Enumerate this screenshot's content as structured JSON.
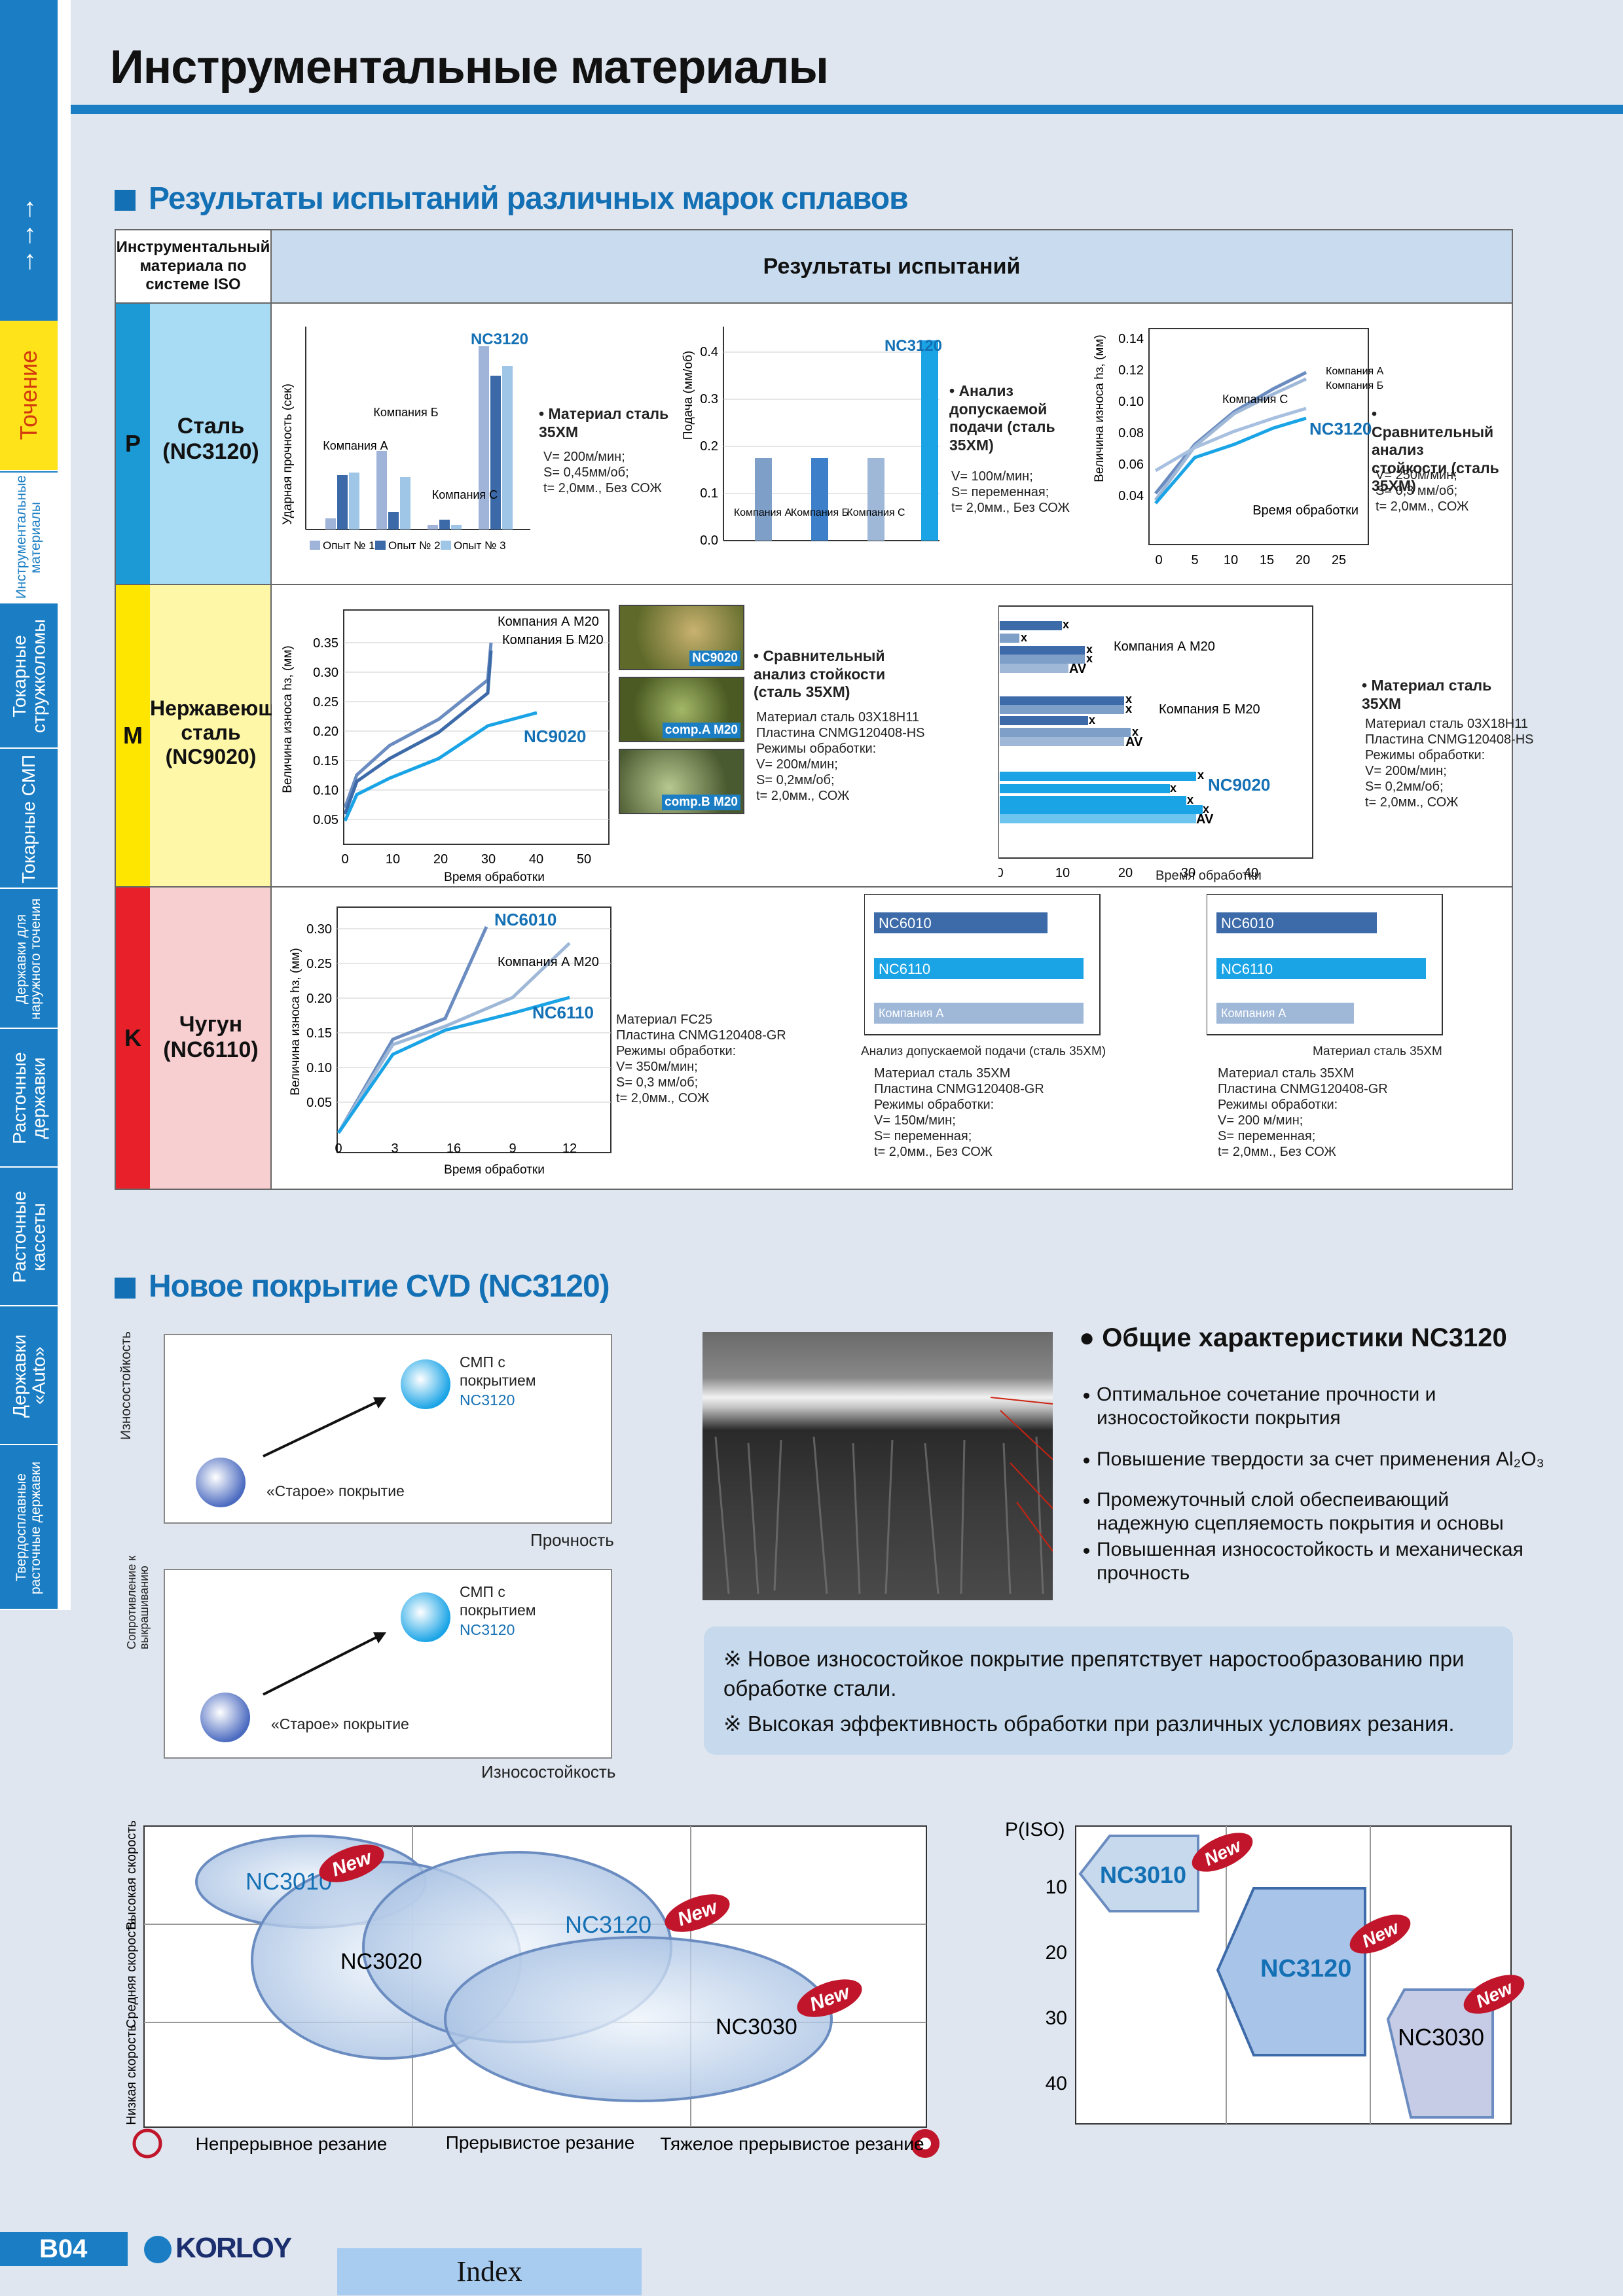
{
  "page": {
    "title": "Инструментальные материалы",
    "code": "B04",
    "logo": "KORLOY",
    "index": "Index"
  },
  "sidebar": {
    "arrows": "←←←",
    "tabs": [
      "Точение",
      "Инструментальные материалы",
      "Токарные стружколомы",
      "Токарные СМП",
      "Державки для наружного точения",
      "Расточные державки",
      "Расточные кассеты",
      "Державки «Auto»",
      "Твердосплавные расточные державки"
    ]
  },
  "section1": {
    "title": "Результаты испытаний различных марок сплавов",
    "col1": "Инструментальный материала по системе ISO",
    "col2": "Результаты испытаний",
    "rows": [
      {
        "iso": "P",
        "name": "Сталь (NC3120)"
      },
      {
        "iso": "M",
        "name": "Нержавеющая сталь (NC9020)"
      },
      {
        "iso": "K",
        "name": "Чугун (NC6110)"
      }
    ]
  },
  "p_row": {
    "c1": {
      "ylabel": "Ударная прочность (сек)",
      "legend": [
        "Опыт № 1",
        "Опыт № 2",
        "Опыт № 3"
      ],
      "labels": [
        "Компания А",
        "Компания Б",
        "Компания С",
        "NC3120"
      ],
      "note_title": "• Материал сталь 35ХМ",
      "note": "V= 200м/мин;\nS= 0,45мм/об;\nt= 2,0мм., Без СОЖ"
    },
    "c2": {
      "ylabel": "Подача (мм/об)",
      "yticks": [
        "0.4",
        "0.3",
        "0.2",
        "0.1",
        "0.0"
      ],
      "labels": [
        "Компания А",
        "Компания Б",
        "Компания С",
        "NC3120"
      ],
      "note_title": "• Анализ допускаемой подачи (сталь 35ХМ)",
      "note": "V= 100м/мин;\nS= переменная;\nt= 2,0мм., Без СОЖ"
    },
    "c3": {
      "ylabel": "Величина износа hз, (мм)",
      "yticks": [
        "0.14",
        "0.12",
        "0.10",
        "0.08",
        "0.06",
        "0.04"
      ],
      "xticks": [
        "0",
        "5",
        "10",
        "15",
        "20",
        "25"
      ],
      "xlabel": "Время обработки",
      "labels": [
        "Компания А",
        "Компания Б",
        "Компания С",
        "NC3120"
      ],
      "note_title": "• Сравнительный анализ стойкости (сталь 35ХМ)",
      "note": "V= 250м/мин;\nS= 0,3 мм/об;\nt= 2,0мм., СОЖ"
    }
  },
  "m_row": {
    "c1": {
      "ylabel": "Величина износа hз, (мм)",
      "yticks": [
        "0.35",
        "0.30",
        "0.25",
        "0.20",
        "0.15",
        "0.10",
        "0.05"
      ],
      "xticks": [
        "0",
        "10",
        "20",
        "30",
        "40",
        "50"
      ],
      "xlabel": "Время обработки",
      "labels": [
        "Компания А  M20",
        "Компания Б  M20",
        "NC9020"
      ]
    },
    "photos": [
      "NC9020",
      "comp.A M20",
      "comp.B M20"
    ],
    "note1_title": "• Сравнительный анализ стойкости (сталь 35ХМ)",
    "note1": "Материал сталь 03Х18Н11\nПластина CNMG120408-HS\nРежимы обработки:\nV= 200м/мин;\nS= 0,2мм/об;\nt= 2,0мм., СОЖ",
    "c3": {
      "xticks": [
        "0",
        "10",
        "20",
        "30",
        "40"
      ],
      "xlabel": "Время обработки",
      "labels": [
        "Компания А  M20",
        "Компания Б  M20",
        "NC9020"
      ],
      "av": "AV",
      "x": "x"
    },
    "note2_title": "• Материал сталь 35ХМ",
    "note2": "Материал сталь 03Х18Н11\nПластина CNMG120408-HS\nРежимы обработки:\nV= 200м/мин;\nS= 0,2мм/об;\nt= 2,0мм., СОЖ"
  },
  "k_row": {
    "c1": {
      "ylabel": "Величина износа hз, (мм)",
      "yticks": [
        "0.30",
        "0.25",
        "0.20",
        "0.15",
        "0.10",
        "0.05"
      ],
      "xticks": [
        "0",
        "3",
        "16",
        "9",
        "12"
      ],
      "xlabel": "Время обработки",
      "labels": [
        "NC6010",
        "Компания А  M20",
        "NC6110"
      ]
    },
    "note1": "Материал FC25\nПластина CNMG120408-GR\nРежимы обработки:\nV= 350м/мин;\nS= 0,3 мм/об;\nt= 2,0мм., СОЖ",
    "c2": {
      "bars": [
        "NC6010",
        "NC6110",
        "Компания А"
      ],
      "caption": "Анализ допускаемой подачи (сталь 35ХМ)",
      "note": "Материал сталь 35ХМ\nПластина CNMG120408-GR\nРежимы обработки:\nV= 150м/мин;\nS= переменная;\nt= 2,0мм., Без СОЖ"
    },
    "c3": {
      "bars": [
        "NC6010",
        "NC6110",
        "Компания А"
      ],
      "caption": "Материал сталь 35ХМ",
      "note": "Материал сталь 35ХМ\nПластина CNMG120408-GR\nРежимы обработки:\nV= 200 м/мин;\nS= переменная;\nt= 2,0мм., Без СОЖ"
    }
  },
  "section2": {
    "title": "Новое покрытие CVD (NC3120)",
    "d1": {
      "ylabel": "Износостойкость",
      "xlabel": "Прочность",
      "new_label": "СМП с покрытием",
      "new_grade": "NC3120",
      "old_label": "«Старое» покрытие"
    },
    "d2": {
      "ylabel": "Сопротивление к выкрашиванию",
      "xlabel": "Износостойкость",
      "new_label": "СМП с покрытием",
      "new_grade": "NC3120",
      "old_label": "«Старое» покрытие"
    },
    "features_title": "● Общие характеристики NC3120",
    "features": [
      "Оптимальное сочетание прочности и износостойкости покрытия",
      "Повышение твердости за счет применения Al₂O₃",
      "Промежуточный слой обеспеивающий надежную сцепляемость покрытия и основы",
      "Повышенная износостойкость и механическая прочность"
    ],
    "notes": [
      "※ Новое износостойкое покрытие препятствует наростообразованию при обработке стали.",
      "※ Высокая эффективность обработки при различных условиях резания."
    ]
  },
  "application_map": {
    "ylabels": [
      "Высокая скорость",
      "Средняя скорость",
      "Низкая скорость"
    ],
    "xlabels": [
      "Непрерывное резание",
      "Прерывистое резание",
      "Тяжелое прерывистое резание"
    ],
    "grades": [
      "NC3010",
      "NC3020",
      "NC3120",
      "NC3030"
    ],
    "new": "New"
  },
  "iso_map": {
    "title": "P(ISO)",
    "yticks": [
      "10",
      "20",
      "30",
      "40"
    ],
    "grades": [
      "NC3010",
      "NC3120",
      "NC3030"
    ],
    "new": "New"
  },
  "colors": {
    "accent": "#1b7ec4",
    "title_blue": "#1470b4",
    "P": "#1b9ad6",
    "M": "#ffe600",
    "K": "#e8202a"
  }
}
